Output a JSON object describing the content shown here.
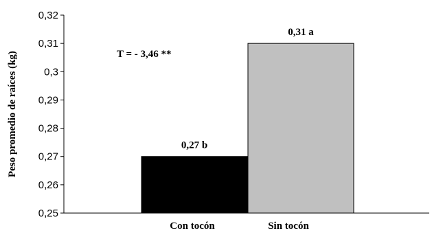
{
  "chart_data": {
    "type": "bar",
    "categories": [
      "Con tocón",
      "Sin tocón"
    ],
    "values": [
      0.27,
      0.31
    ],
    "bar_labels": [
      "0,27 b",
      "0,31 a"
    ],
    "bar_colors": [
      "#000000",
      "#c0c0c0"
    ],
    "ylabel": "Peso promedio de raíces (kg)",
    "xlabel": "",
    "annotation": "T = - 3,46 **",
    "ylim": [
      0.25,
      0.32
    ],
    "yticks": [
      0.25,
      0.26,
      0.27,
      0.28,
      0.29,
      0.3,
      0.31,
      0.32
    ],
    "ytick_labels": [
      "0,25",
      "0,26",
      "0,27",
      "0,28",
      "0,29",
      "0,3",
      "0,31",
      "0,32"
    ],
    "grid": false
  }
}
